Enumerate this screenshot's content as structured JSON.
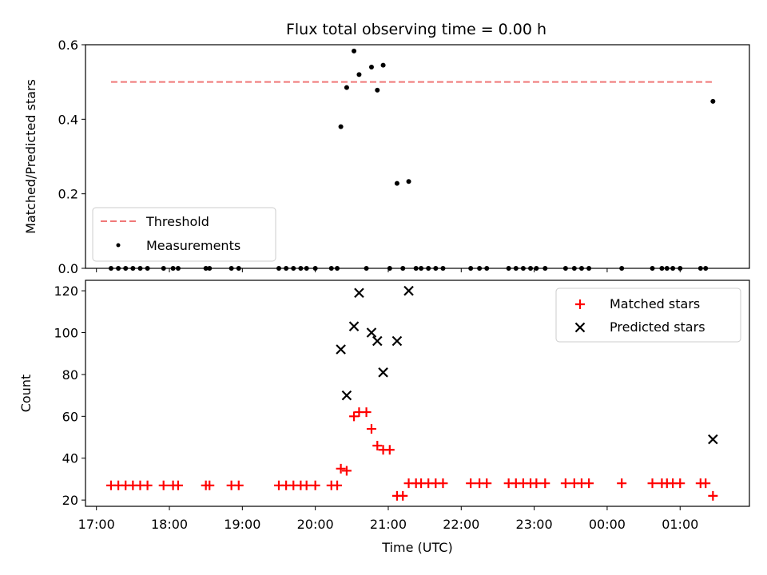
{
  "title": "Flux total observing time = 0.00 h",
  "colors": {
    "threshold": "#f07878",
    "measurement": "#000000",
    "matched": "#ff0000",
    "predicted": "#000000"
  },
  "chart_data": [
    {
      "type": "scatter",
      "panel": "top",
      "ylabel": "Matched/Predicted stars",
      "xlabel": "",
      "ylim": [
        0,
        0.6
      ],
      "yticks": [
        0.0,
        0.2,
        0.4,
        0.6
      ],
      "ytick_labels": [
        "0.0",
        "0.2",
        "0.4",
        "0.6"
      ],
      "xlim": [
        16.85,
        25.95
      ],
      "legend_position": "lower-left",
      "threshold": {
        "name": "Threshold",
        "value": 0.5,
        "x_start": 17.2,
        "x_end": 25.45
      },
      "series": [
        {
          "name": "Measurements",
          "x": [
            17.2,
            17.3,
            17.4,
            17.5,
            17.6,
            17.7,
            17.92,
            18.05,
            18.12,
            18.5,
            18.55,
            18.85,
            18.95,
            19.5,
            19.6,
            19.7,
            19.8,
            19.88,
            20.0,
            20.22,
            20.3,
            20.35,
            20.43,
            20.53,
            20.6,
            20.7,
            20.77,
            20.85,
            20.93,
            21.02,
            21.12,
            21.2,
            21.28,
            21.38,
            21.45,
            21.55,
            21.65,
            21.75,
            22.13,
            22.25,
            22.35,
            22.65,
            22.75,
            22.85,
            22.95,
            23.03,
            23.15,
            23.43,
            23.55,
            23.65,
            23.75,
            24.2,
            24.62,
            24.75,
            24.82,
            24.9,
            25.0,
            25.28,
            25.35,
            25.45
          ],
          "y": [
            0,
            0,
            0,
            0,
            0,
            0,
            0,
            0,
            0,
            0,
            0,
            0,
            0,
            0,
            0,
            0,
            0,
            0,
            0,
            0,
            0,
            0.38,
            0.485,
            0.583,
            0.52,
            0,
            0.54,
            0.478,
            0.545,
            0,
            0.228,
            0,
            0.233,
            0,
            0,
            0,
            0,
            0,
            0,
            0,
            0,
            0,
            0,
            0,
            0,
            0,
            0,
            0,
            0,
            0,
            0,
            0,
            0,
            0,
            0,
            0,
            0,
            0,
            0,
            0.448
          ]
        }
      ]
    },
    {
      "type": "scatter",
      "panel": "bottom",
      "ylabel": "Count",
      "xlabel": "Time (UTC)",
      "ylim": [
        17,
        125
      ],
      "yticks": [
        20,
        40,
        60,
        80,
        100,
        120
      ],
      "ytick_labels": [
        "20",
        "40",
        "60",
        "80",
        "100",
        "120"
      ],
      "xlim": [
        16.85,
        25.95
      ],
      "xticks": [
        17,
        18,
        19,
        20,
        21,
        22,
        23,
        24,
        25
      ],
      "xtick_labels": [
        "17:00",
        "18:00",
        "19:00",
        "20:00",
        "21:00",
        "22:00",
        "23:00",
        "00:00",
        "01:00"
      ],
      "legend_position": "upper-right",
      "series": [
        {
          "name": "Matched stars",
          "x": [
            17.2,
            17.3,
            17.4,
            17.5,
            17.6,
            17.7,
            17.92,
            18.05,
            18.12,
            18.5,
            18.55,
            18.85,
            18.95,
            19.5,
            19.6,
            19.7,
            19.8,
            19.88,
            20.0,
            20.22,
            20.3,
            20.35,
            20.43,
            20.53,
            20.6,
            20.7,
            20.77,
            20.85,
            20.93,
            21.02,
            21.12,
            21.2,
            21.28,
            21.38,
            21.45,
            21.55,
            21.65,
            21.75,
            22.13,
            22.25,
            22.35,
            22.65,
            22.75,
            22.85,
            22.95,
            23.03,
            23.15,
            23.43,
            23.55,
            23.65,
            23.75,
            24.2,
            24.62,
            24.75,
            24.82,
            24.9,
            25.0,
            25.28,
            25.35,
            25.45
          ],
          "y": [
            27,
            27,
            27,
            27,
            27,
            27,
            27,
            27,
            27,
            27,
            27,
            27,
            27,
            27,
            27,
            27,
            27,
            27,
            27,
            27,
            27,
            35,
            34,
            60,
            62,
            62,
            54,
            46,
            44,
            44,
            22,
            22,
            28,
            28,
            28,
            28,
            28,
            28,
            28,
            28,
            28,
            28,
            28,
            28,
            28,
            28,
            28,
            28,
            28,
            28,
            28,
            28,
            28,
            28,
            28,
            28,
            28,
            28,
            28,
            22
          ]
        },
        {
          "name": "Predicted stars",
          "x": [
            20.35,
            20.43,
            20.53,
            20.6,
            20.77,
            20.85,
            20.93,
            21.12,
            21.28,
            25.45
          ],
          "y": [
            92,
            70,
            103,
            119,
            100,
            96,
            81,
            96,
            120,
            49
          ]
        }
      ]
    }
  ]
}
